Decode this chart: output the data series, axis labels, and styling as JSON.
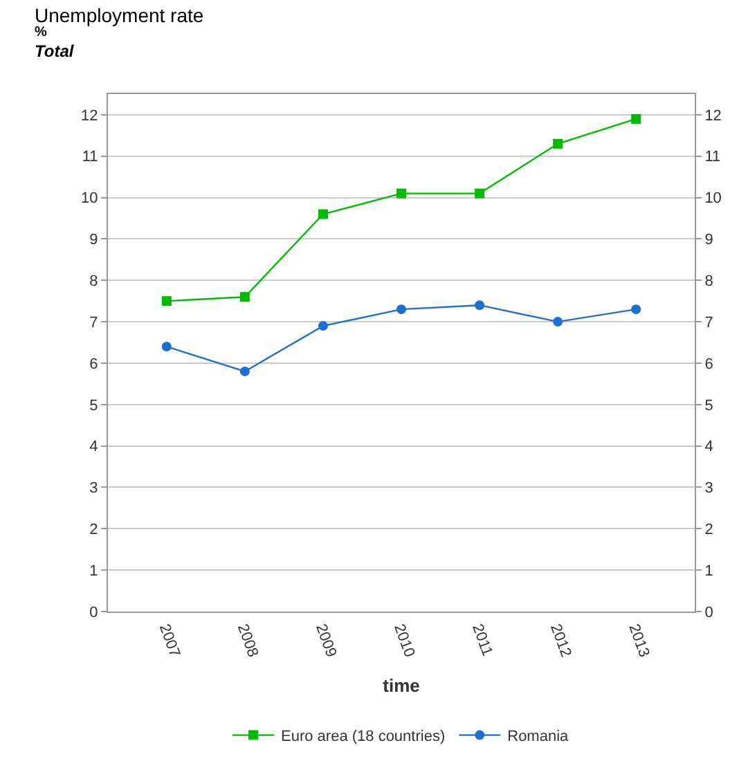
{
  "chart_data": {
    "type": "line",
    "title": "Unemployment rate",
    "subtitle": "%",
    "annotations": [
      "Total"
    ],
    "xlabel": "time",
    "categories": [
      "2007",
      "2008",
      "2009",
      "2010",
      "2011",
      "2012",
      "2013"
    ],
    "series": [
      {
        "name": "Euro area (18 countries)",
        "color": "#00bb00",
        "marker": "square",
        "values": [
          7.5,
          7.6,
          9.6,
          10.1,
          10.1,
          11.3,
          11.9
        ]
      },
      {
        "name": "Romania",
        "color": "#1f6fd1",
        "marker": "circle",
        "values": [
          6.4,
          5.8,
          6.9,
          7.3,
          7.4,
          7.0,
          7.3
        ]
      }
    ],
    "ylim": [
      0,
      12.5
    ],
    "yticks": [
      0,
      1,
      2,
      3,
      4,
      5,
      6,
      7,
      8,
      9,
      10,
      11,
      12
    ],
    "y2lim": [
      0,
      12.5
    ],
    "y2ticks": [
      0,
      1,
      2,
      3,
      4,
      5,
      6,
      7,
      8,
      9,
      10,
      11,
      12
    ],
    "grid": "y",
    "legend": "bottom",
    "line_style": "solid"
  }
}
